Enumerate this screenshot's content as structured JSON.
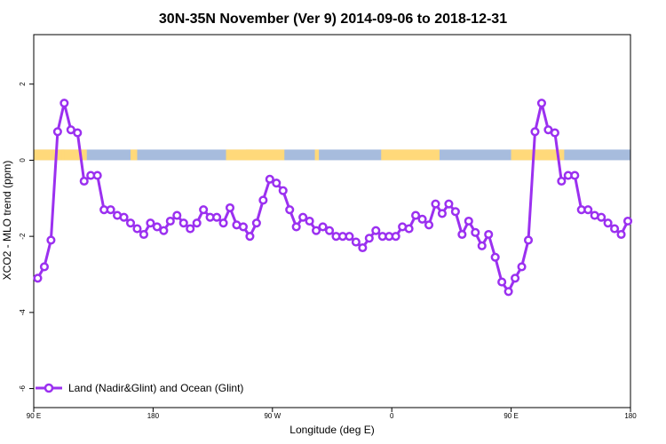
{
  "chart_data": {
    "type": "line",
    "title": "30N-35N November (Ver 9)   2014-09-06 to 2018-12-31",
    "xlabel": "Longitude (deg E)",
    "ylabel": "XCO2 - MLO trend (ppm)",
    "xlim": [
      90,
      540
    ],
    "ylim": [
      -6.5,
      3.3
    ],
    "xticks": [
      {
        "value": 90,
        "label": "90 E"
      },
      {
        "value": 180,
        "label": "180"
      },
      {
        "value": 270,
        "label": "90 W"
      },
      {
        "value": 360,
        "label": "0"
      },
      {
        "value": 450,
        "label": "90 E"
      },
      {
        "value": 540,
        "label": "180"
      }
    ],
    "yticks": [
      {
        "value": 2,
        "label": "2"
      },
      {
        "value": 0,
        "label": "0"
      },
      {
        "value": -2,
        "label": "-2"
      },
      {
        "value": -4,
        "label": "-4"
      },
      {
        "value": -6,
        "label": "-6"
      }
    ],
    "surface_band": {
      "ymin": 0,
      "ymax": 0.28,
      "land_color": "#FFD97A",
      "ocean_color": "#A7BCDD",
      "land_ranges": [
        [
          90,
          130
        ],
        [
          111,
          113
        ],
        [
          163,
          168
        ],
        [
          235,
          279
        ],
        [
          250,
          255
        ],
        [
          302,
          305
        ],
        [
          352,
          396
        ],
        [
          450,
          490
        ],
        [
          476,
          488
        ]
      ]
    },
    "series": [
      {
        "name": "Land (Nadir&Glint) and Ocean (Glint)",
        "color": "#9B30F0",
        "x": [
          93,
          98,
          103,
          108,
          113,
          118,
          123,
          128,
          133,
          138,
          143,
          148,
          153,
          158,
          163,
          168,
          173,
          178,
          183,
          188,
          193,
          198,
          203,
          208,
          213,
          218,
          223,
          228,
          233,
          238,
          243,
          248,
          253,
          258,
          263,
          268,
          273,
          278,
          283,
          288,
          293,
          298,
          303,
          308,
          313,
          318,
          323,
          328,
          333,
          338,
          343,
          348,
          353,
          358,
          363,
          368,
          373,
          378,
          383,
          388,
          393,
          398,
          403,
          408,
          413,
          418,
          423,
          428,
          433,
          438,
          443,
          448,
          453,
          458,
          463,
          468,
          473,
          478,
          483,
          488,
          493,
          498,
          503,
          508,
          513,
          518,
          523,
          528,
          533,
          538
        ],
        "y": [
          -3.1,
          -2.8,
          -2.1,
          0.75,
          1.5,
          0.8,
          0.72,
          -0.55,
          -0.4,
          -0.4,
          -1.3,
          -1.3,
          -1.45,
          -1.5,
          -1.65,
          -1.8,
          -1.95,
          -1.65,
          -1.75,
          -1.85,
          -1.6,
          -1.45,
          -1.65,
          -1.8,
          -1.65,
          -1.3,
          -1.5,
          -1.5,
          -1.65,
          -1.25,
          -1.7,
          -1.75,
          -2.0,
          -1.65,
          -1.05,
          -0.5,
          -0.6,
          -0.8,
          -1.3,
          -1.75,
          -1.5,
          -1.6,
          -1.85,
          -1.75,
          -1.85,
          -2.0,
          -2.0,
          -2.0,
          -2.15,
          -2.3,
          -2.05,
          -1.85,
          -2.0,
          -2.0,
          -2.0,
          -1.75,
          -1.8,
          -1.45,
          -1.55,
          -1.7,
          -1.15,
          -1.4,
          -1.15,
          -1.35,
          -1.95,
          -1.6,
          -1.9,
          -2.25,
          -1.95,
          -2.55,
          -3.2,
          -3.45,
          -3.1,
          -2.8,
          -2.1,
          0.75,
          1.5,
          0.8,
          0.72,
          -0.55,
          -0.4,
          -0.4,
          -1.3,
          -1.3,
          -1.45,
          -1.5,
          -1.65,
          -1.8,
          -1.95,
          -1.6
        ]
      }
    ],
    "legend": {
      "position": "bottom-left"
    },
    "grid": false
  }
}
